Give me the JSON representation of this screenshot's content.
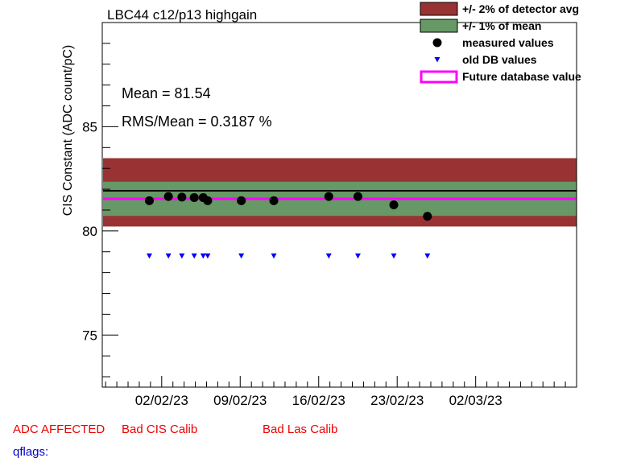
{
  "chart_data": {
    "type": "scatter",
    "title": "LBC44 c12/p13 highgain",
    "ylabel": "CIS Constant (ADC count/pC)",
    "xlabel": "",
    "ylim": [
      72.5,
      90
    ],
    "xlim_days": [
      -3.3,
      39.0
    ],
    "x_reference_date": "2023-01-31",
    "x_ticks": [
      {
        "day": 2,
        "label": "02/02/23"
      },
      {
        "day": 9,
        "label": "09/02/23"
      },
      {
        "day": 16,
        "label": "16/02/23"
      },
      {
        "day": 23,
        "label": "23/02/23"
      },
      {
        "day": 30,
        "label": "02/03/23"
      }
    ],
    "y_ticks": [
      {
        "value": 75,
        "label": "75"
      },
      {
        "value": 80,
        "label": "80"
      },
      {
        "value": 85,
        "label": "85"
      }
    ],
    "mean": 81.54,
    "detector_avg": 81.85,
    "future_db_value": 81.54,
    "bands": [
      {
        "name": "+/- 2% of detector avg",
        "low": 80.21,
        "high": 83.49,
        "color": "#993333"
      },
      {
        "name": "+/- 1% of mean",
        "low": 80.72,
        "high": 82.36,
        "color": "#669966"
      }
    ],
    "series": [
      {
        "name": "measured values",
        "marker": "circle",
        "color": "#000000",
        "x": [
          0.9,
          2.6,
          3.8,
          4.9,
          5.7,
          6.1,
          9.1,
          12.0,
          16.9,
          19.5,
          22.7,
          25.7
        ],
        "y": [
          81.45,
          81.65,
          81.62,
          81.6,
          81.6,
          81.45,
          81.45,
          81.45,
          81.65,
          81.65,
          81.25,
          80.7
        ]
      },
      {
        "name": "old DB values",
        "marker": "triangle-down",
        "color": "#0000ff",
        "x": [
          0.9,
          2.6,
          3.8,
          4.9,
          5.7,
          6.1,
          9.1,
          12.0,
          16.9,
          19.5,
          22.7,
          25.7
        ],
        "y": [
          78.8,
          78.8,
          78.8,
          78.8,
          78.8,
          78.8,
          78.8,
          78.8,
          78.8,
          78.8,
          78.8,
          78.8
        ]
      }
    ],
    "legend": {
      "position": "top-right",
      "entries": [
        {
          "label": "+/- 2% of detector avg",
          "kind": "box",
          "color": "#993333"
        },
        {
          "label": "+/- 1% of mean",
          "kind": "box",
          "color": "#669966"
        },
        {
          "label": "measured values",
          "kind": "circle",
          "color": "#000000"
        },
        {
          "label": "old DB values",
          "kind": "triangle",
          "color": "#0000ff"
        },
        {
          "label": "Future database value",
          "kind": "line",
          "color": "#ff00ff"
        }
      ]
    },
    "stats": {
      "mean_text": "Mean = 81.54",
      "rms_text": "RMS/Mean = 0.3187 %"
    }
  },
  "footer": {
    "flags": [
      "ADC AFFECTED",
      "Bad CIS Calib",
      "Bad Las Calib"
    ],
    "qflags_label": "qflags:"
  },
  "colors": {
    "flag_text": "#ee0000",
    "qflags_text": "#0000cc",
    "frame": "#000000",
    "mean_line": "#000000",
    "future_line": "#ff00ff"
  }
}
